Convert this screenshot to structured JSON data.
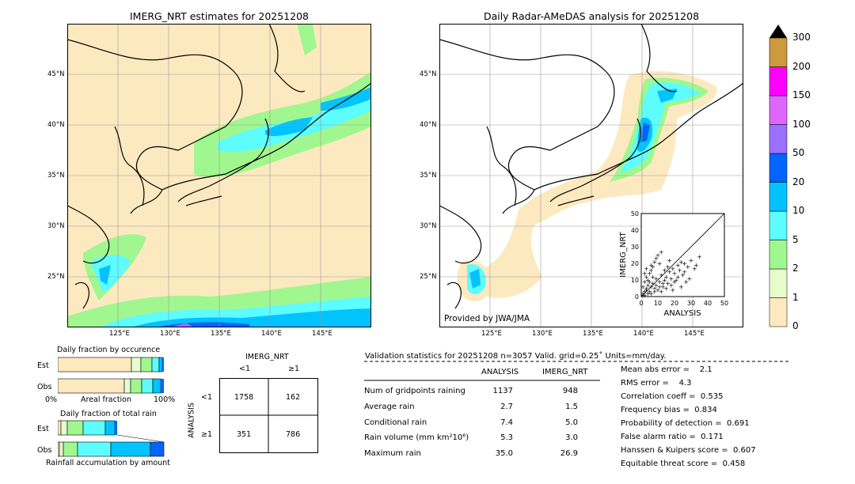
{
  "left_map": {
    "title": "IMERG_NRT estimates for 20251208",
    "lon_ticks": [
      "125°E",
      "130°E",
      "135°E",
      "140°E",
      "145°E"
    ],
    "lat_ticks": [
      "45°N",
      "40°N",
      "35°N",
      "30°N",
      "25°N"
    ]
  },
  "right_map": {
    "title": "Daily Radar-AMeDAS analysis for 20251208",
    "lon_ticks": [
      "125°E",
      "130°E",
      "135°E",
      "140°E",
      "145°E"
    ],
    "lat_ticks": [
      "45°N",
      "40°N",
      "35°N",
      "30°N",
      "25°N"
    ],
    "credit": "Provided by JWA/JMA"
  },
  "colorbar": {
    "labels": [
      "0",
      "1",
      "2",
      "5",
      "10",
      "20",
      "50",
      "100",
      "150",
      "200",
      "300"
    ],
    "colors": [
      "#fde9c0",
      "#e6fccc",
      "#a0f790",
      "#5dfcff",
      "#00c3ff",
      "#0064ff",
      "#9a70ff",
      "#dd66ff",
      "#ff00ff",
      "#cc9a40"
    ]
  },
  "occurrence": {
    "title": "Daily fraction by occurence",
    "est_label": "Est",
    "obs_label": "Obs",
    "axis_left": "0%",
    "axis_mid": "Areal fraction",
    "axis_right": "100%"
  },
  "total_rain": {
    "title": "Daily fraction of total rain",
    "est_label": "Est",
    "obs_label": "Obs",
    "axis_label": "Rainfall accumulation by amount"
  },
  "contingency": {
    "header": "IMERG_NRT",
    "col_lt": "<1",
    "col_ge": "≥1",
    "row_axis": "ANALYSIS",
    "row_lt": "<1",
    "row_ge": "≥1",
    "cells": [
      "1758",
      "162",
      "351",
      "786"
    ]
  },
  "validation": {
    "header": "Validation statistics for 20251208  n=3057 Valid. grid=0.25˚ Units=mm/day.",
    "col_analysis": "ANALYSIS",
    "col_imerg": "IMERG_NRT",
    "rows": [
      {
        "label": "Num of gridpoints raining",
        "analysis": "1137",
        "imerg": "948"
      },
      {
        "label": "Average rain",
        "analysis": "2.7",
        "imerg": "1.5"
      },
      {
        "label": "Conditional rain",
        "analysis": "7.4",
        "imerg": "5.0"
      },
      {
        "label": "Rain volume (mm km²10⁶)",
        "analysis": "5.3",
        "imerg": "3.0"
      },
      {
        "label": "Maximum rain",
        "analysis": "35.0",
        "imerg": "26.9"
      }
    ],
    "scores": [
      "Mean abs error =    2.1",
      "RMS error =    4.3",
      "Correlation coeff =  0.535",
      "Frequency bias =  0.834",
      "Probability of detection =  0.691",
      "False alarm ratio =  0.171",
      "Hanssen & Kuipers score =  0.607",
      "Equitable threat score =  0.458"
    ]
  },
  "chart_data": {
    "type": "scatter",
    "xlabel": "ANALYSIS",
    "ylabel": "IMERG_NRT",
    "xlim": [
      0,
      50
    ],
    "ylim": [
      0,
      50
    ],
    "x_ticks": [
      "0",
      "10",
      "20",
      "30",
      "40",
      "50"
    ],
    "y_ticks": [
      "0",
      "10",
      "20",
      "30",
      "40",
      "50"
    ],
    "points": [
      [
        1,
        2
      ],
      [
        2,
        1
      ],
      [
        3,
        4
      ],
      [
        1,
        6
      ],
      [
        5,
        3
      ],
      [
        4,
        7
      ],
      [
        6,
        2
      ],
      [
        7,
        8
      ],
      [
        2,
        9
      ],
      [
        8,
        5
      ],
      [
        9,
        11
      ],
      [
        10,
        4
      ],
      [
        3,
        12
      ],
      [
        11,
        9
      ],
      [
        12,
        13
      ],
      [
        5,
        14
      ],
      [
        13,
        6
      ],
      [
        14,
        10
      ],
      [
        6,
        16
      ],
      [
        15,
        12
      ],
      [
        16,
        8
      ],
      [
        7,
        18
      ],
      [
        17,
        15
      ],
      [
        18,
        11
      ],
      [
        8,
        21
      ],
      [
        19,
        17
      ],
      [
        20,
        14
      ],
      [
        9,
        23
      ],
      [
        21,
        10
      ],
      [
        22,
        19
      ],
      [
        10,
        25
      ],
      [
        23,
        16
      ],
      [
        24,
        21
      ],
      [
        12,
        27
      ],
      [
        25,
        13
      ],
      [
        26,
        20
      ],
      [
        28,
        18
      ],
      [
        30,
        22
      ],
      [
        32,
        17
      ],
      [
        35,
        24
      ],
      [
        2,
        3
      ],
      [
        4,
        2
      ],
      [
        1,
        1
      ],
      [
        3,
        5
      ],
      [
        6,
        6
      ],
      [
        5,
        9
      ],
      [
        8,
        3
      ],
      [
        9,
        7
      ],
      [
        11,
        6
      ],
      [
        13,
        8
      ],
      [
        15,
        5
      ],
      [
        4,
        10
      ],
      [
        7,
        12
      ],
      [
        2,
        14
      ],
      [
        12,
        3
      ],
      [
        16,
        18
      ],
      [
        18,
        7
      ],
      [
        20,
        9
      ],
      [
        3,
        17
      ],
      [
        6,
        19
      ],
      [
        27,
        9
      ],
      [
        24,
        6
      ],
      [
        11,
        20
      ],
      [
        14,
        16
      ],
      [
        19,
        4
      ],
      [
        22,
        12
      ],
      [
        26,
        15
      ],
      [
        29,
        11
      ],
      [
        33,
        19
      ],
      [
        17,
        22
      ]
    ]
  }
}
